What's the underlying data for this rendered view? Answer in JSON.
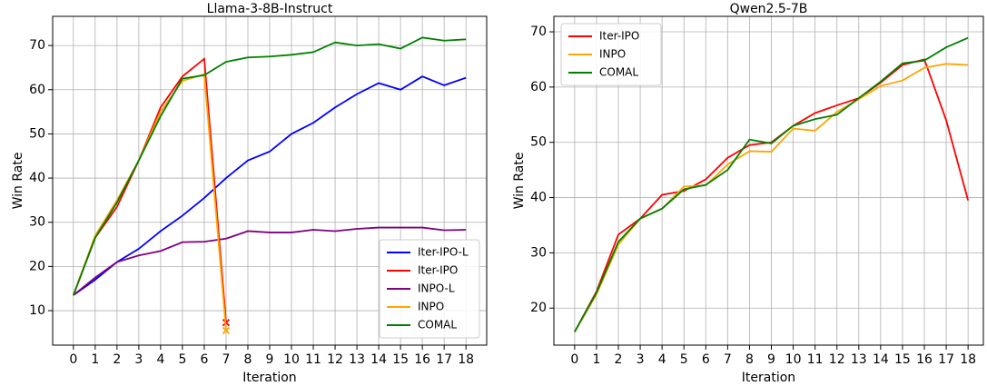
{
  "chart_data": [
    {
      "type": "line",
      "title": "Llama-3-8B-Instruct",
      "x_label": "Iteration",
      "y_label": "Win Rate",
      "x": [
        0,
        1,
        2,
        3,
        4,
        5,
        6,
        7,
        8,
        9,
        10,
        11,
        12,
        13,
        14,
        15,
        16,
        17,
        18
      ],
      "xlim": [
        -0.95,
        18.95
      ],
      "ylim": [
        2.2,
        76.6
      ],
      "xticks": [
        0,
        1,
        2,
        3,
        4,
        5,
        6,
        7,
        8,
        9,
        10,
        11,
        12,
        13,
        14,
        15,
        16,
        17,
        18
      ],
      "yticks": [
        10,
        20,
        30,
        40,
        50,
        60,
        70
      ],
      "grid": true,
      "legend": "lower right",
      "series": [
        {
          "name": "Iter-IPO-L",
          "color": "#0000ff",
          "values": [
            13.5,
            17,
            21,
            24,
            28,
            31.5,
            35.5,
            40,
            44,
            46,
            50,
            52.5,
            56,
            59,
            61.5,
            60,
            63,
            61,
            62.7
          ]
        },
        {
          "name": "Iter-IPO",
          "color": "#ff0000",
          "end_marker": "x",
          "values": [
            13.5,
            26.5,
            33.5,
            44,
            56,
            63,
            67,
            7.3,
            null,
            null,
            null,
            null,
            null,
            null,
            null,
            null,
            null,
            null,
            null
          ]
        },
        {
          "name": "INPO-L",
          "color": "#800080",
          "values": [
            13.5,
            17.5,
            21,
            22.5,
            23.5,
            25.5,
            25.6,
            26.3,
            28,
            27.7,
            27.7,
            28.3,
            28,
            28.5,
            28.8,
            28.8,
            28.8,
            28.2,
            28.3
          ]
        },
        {
          "name": "INPO",
          "color": "#ffa500",
          "end_marker": "x",
          "values": [
            13.5,
            27,
            35,
            44,
            55,
            62,
            63.5,
            5.5,
            null,
            null,
            null,
            null,
            null,
            null,
            null,
            null,
            null,
            null,
            null
          ]
        },
        {
          "name": "COMAL",
          "color": "#008000",
          "values": [
            13.5,
            26.5,
            34.5,
            44,
            54,
            62.5,
            63.3,
            66.3,
            67.3,
            67.5,
            67.9,
            68.5,
            70.7,
            70,
            70.3,
            69.3,
            71.8,
            71.1,
            71.4
          ]
        }
      ]
    },
    {
      "type": "line",
      "title": "Qwen2.5-7B",
      "x_label": "Iteration",
      "y_label": "Win Rate",
      "x": [
        0,
        1,
        2,
        3,
        4,
        5,
        6,
        7,
        8,
        9,
        10,
        11,
        12,
        13,
        14,
        15,
        16,
        17,
        18
      ],
      "xlim": [
        -0.95,
        18.7
      ],
      "ylim": [
        13.3,
        72.8
      ],
      "xticks": [
        0,
        1,
        2,
        3,
        4,
        5,
        6,
        7,
        8,
        9,
        10,
        11,
        12,
        13,
        14,
        15,
        16,
        17,
        18
      ],
      "yticks": [
        20,
        30,
        40,
        50,
        60,
        70
      ],
      "grid": true,
      "legend": "upper left",
      "series": [
        {
          "name": "Iter-IPO",
          "color": "#ff0000",
          "values": [
            15.7,
            23,
            33.3,
            36.2,
            40.5,
            41.2,
            43.3,
            47.2,
            49.5,
            50,
            53,
            55.3,
            56.7,
            58,
            60.8,
            64,
            65,
            54,
            39.5
          ]
        },
        {
          "name": "INPO",
          "color": "#ffa500",
          "values": [
            15.7,
            22.5,
            31.5,
            36.2,
            38,
            42,
            42.2,
            46,
            48.4,
            48.3,
            52.5,
            52.1,
            55.5,
            57.8,
            60.2,
            61.2,
            63.5,
            64.2,
            64
          ]
        },
        {
          "name": "COMAL",
          "color": "#008000",
          "values": [
            15.7,
            22.8,
            32,
            36.2,
            38,
            41.5,
            42.3,
            45,
            50.5,
            49.8,
            53,
            54.2,
            55,
            58,
            61,
            64.3,
            64.8,
            67.2,
            68.9
          ]
        }
      ]
    }
  ]
}
